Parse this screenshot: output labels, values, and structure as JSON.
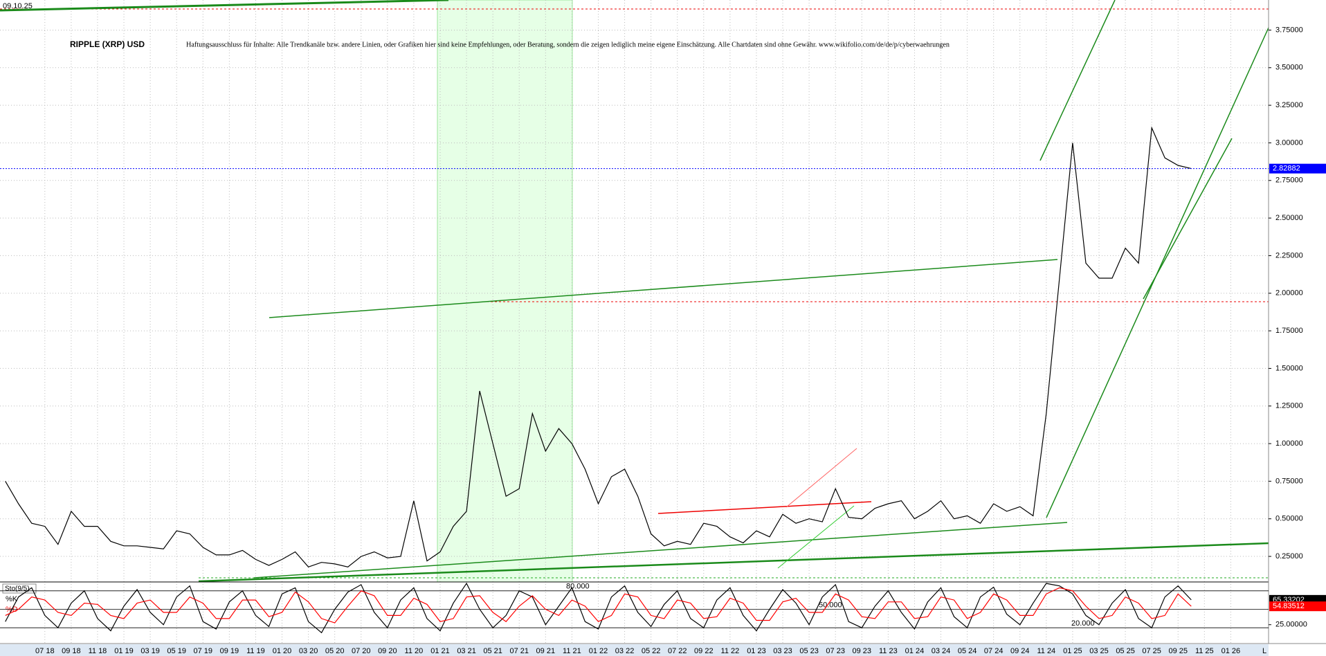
{
  "header": {
    "date": "09.10.25",
    "title": "RIPPLE (XRP) USD",
    "disclaimer": "Haftungsausschluss für Inhalte: Alle Trendkanäle bzw. andere Linien, oder Grafiken hier sind keine Empfehlungen, oder Beratung, sondern die zeigen lediglich meine eigene Einschätzung. Alle Chartdaten sind ohne Gewähr. www.wikifolio.com/de/de/p/cyberwaehrungen",
    "corner": "L"
  },
  "chart_data": [
    {
      "type": "line",
      "title": "RIPPLE (XRP) USD",
      "categories": [
        null,
        null,
        null,
        "07 18",
        null,
        "09 18",
        null,
        "11 18",
        null,
        "01 19",
        null,
        "03 19",
        null,
        "05 19",
        null,
        "07 19",
        null,
        "09 19",
        null,
        "11 19",
        null,
        "01 20",
        null,
        "03 20",
        null,
        "05 20",
        null,
        "07 20",
        null,
        "09 20",
        null,
        "11 20",
        null,
        "01 21",
        null,
        "03 21",
        null,
        "05 21",
        null,
        "07 21",
        null,
        "09 21",
        null,
        "11 21",
        null,
        "01 22",
        null,
        "03 22",
        null,
        "05 22",
        null,
        "07 22",
        null,
        "09 22",
        null,
        "11 22",
        null,
        "01 23",
        null,
        "03 23",
        null,
        "05 23",
        null,
        "07 23",
        null,
        "09 23",
        null,
        "11 23",
        null,
        "01 24",
        null,
        "03 24",
        null,
        "05 24",
        null,
        "07 24",
        null,
        "09 24",
        null,
        "11 24",
        null,
        "01 25",
        null,
        "03 25",
        null,
        "05 25",
        null,
        "07 25",
        null,
        "09 25",
        null,
        "11 25",
        null,
        "01 26"
      ],
      "series": [
        {
          "color": "#000000",
          "values": [
            0.75,
            0.6,
            0.47,
            0.45,
            0.33,
            0.55,
            0.45,
            0.45,
            0.35,
            0.32,
            0.32,
            0.31,
            0.3,
            0.42,
            0.4,
            0.31,
            0.26,
            0.26,
            0.29,
            0.23,
            0.19,
            0.23,
            0.28,
            0.18,
            0.21,
            0.2,
            0.18,
            0.25,
            0.28,
            0.24,
            0.25,
            0.62,
            0.22,
            0.28,
            0.45,
            0.55,
            1.35,
            1.0,
            0.65,
            0.7,
            1.2,
            0.95,
            1.1,
            1.0,
            0.83,
            0.6,
            0.78,
            0.83,
            0.65,
            0.4,
            0.32,
            0.35,
            0.33,
            0.47,
            0.45,
            0.38,
            0.34,
            0.42,
            0.38,
            0.53,
            0.47,
            0.5,
            0.48,
            0.7,
            0.51,
            0.5,
            0.57,
            0.6,
            0.62,
            0.5,
            0.55,
            0.62,
            0.5,
            0.52,
            0.47,
            0.6,
            0.55,
            0.58,
            0.52,
            1.2,
            2.1,
            3.0,
            2.2,
            2.1,
            2.1,
            2.3,
            2.2,
            3.1,
            2.9,
            2.85,
            2.82882,
            null,
            null,
            null
          ]
        }
      ],
      "last_color": "#0000ff",
      "ylim": [
        0.08,
        3.95
      ],
      "yticks": [
        {
          "value": 0.25,
          "label": "0.25000"
        },
        {
          "value": 0.5,
          "label": "0.50000"
        },
        {
          "value": 0.75,
          "label": "0.75000"
        },
        {
          "value": 1.0,
          "label": "1.00000"
        },
        {
          "value": 1.25,
          "label": "1.25000"
        },
        {
          "value": 1.5,
          "label": "1.50000"
        },
        {
          "value": 1.75,
          "label": "1.75000"
        },
        {
          "value": 2.0,
          "label": "2.00000"
        },
        {
          "value": 2.25,
          "label": "2.25000"
        },
        {
          "value": 2.5,
          "label": "2.50000"
        },
        {
          "value": 2.75,
          "label": "2.75000"
        },
        {
          "value": 3.0,
          "label": "3.00000"
        },
        {
          "value": 3.25,
          "label": "3.25000"
        },
        {
          "value": 3.5,
          "label": "3.50000"
        },
        {
          "value": 3.75,
          "label": "3.75000"
        }
      ],
      "grid": true
    },
    {
      "type": "line",
      "title": "Sto(9/5)",
      "series": [
        {
          "name": "%K",
          "color": "#000000",
          "values": [
            30,
            70,
            85,
            40,
            20,
            60,
            80,
            35,
            15,
            55,
            82,
            45,
            25,
            70,
            88,
            30,
            18,
            62,
            80,
            40,
            22,
            75,
            85,
            30,
            12,
            50,
            78,
            90,
            45,
            20,
            65,
            85,
            35,
            15,
            60,
            92,
            50,
            20,
            40,
            80,
            70,
            25,
            55,
            85,
            30,
            18,
            70,
            88,
            45,
            22,
            58,
            80,
            35,
            20,
            65,
            85,
            40,
            15,
            50,
            82,
            60,
            25,
            70,
            90,
            30,
            20,
            55,
            80,
            45,
            18,
            62,
            85,
            38,
            20,
            70,
            86,
            42,
            25,
            60,
            92,
            88,
            75,
            40,
            25,
            60,
            82,
            35,
            20,
            70,
            88,
            65.33202,
            null,
            null,
            null
          ]
        },
        {
          "name": "%D",
          "color": "#ff0000",
          "values": [
            40,
            50,
            70,
            65,
            45,
            40,
            60,
            58,
            40,
            35,
            60,
            65,
            45,
            45,
            70,
            60,
            35,
            35,
            65,
            65,
            38,
            45,
            78,
            62,
            35,
            28,
            55,
            80,
            72,
            40,
            40,
            68,
            58,
            30,
            35,
            70,
            72,
            45,
            30,
            55,
            72,
            50,
            40,
            65,
            55,
            30,
            40,
            75,
            70,
            40,
            35,
            65,
            60,
            35,
            38,
            68,
            60,
            32,
            32,
            62,
            68,
            45,
            45,
            75,
            65,
            38,
            35,
            62,
            62,
            35,
            38,
            70,
            65,
            35,
            45,
            75,
            65,
            40,
            40,
            75,
            85,
            80,
            55,
            35,
            40,
            70,
            60,
            35,
            40,
            75,
            54.83512,
            null,
            null,
            null
          ]
        }
      ],
      "ylim": [
        0,
        100
      ],
      "levels": [
        {
          "value": 80,
          "label": "80.000"
        },
        {
          "value": 50,
          "label": "50.000"
        },
        {
          "value": 20,
          "label": "20.000"
        }
      ],
      "yticks": [
        {
          "value": 25,
          "label": "25.00000"
        }
      ]
    }
  ]
}
